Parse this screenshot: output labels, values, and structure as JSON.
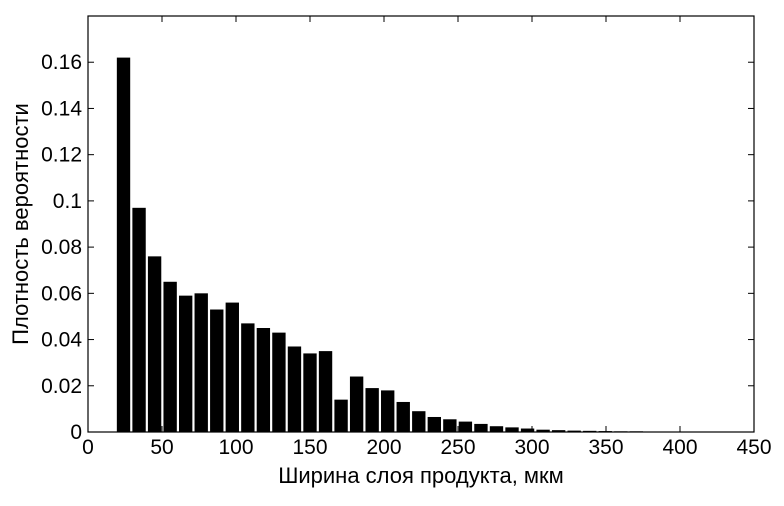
{
  "chart_data": {
    "type": "bar",
    "title": "",
    "xlabel": "Ширина слоя продукта, мкм",
    "ylabel": "Плотность вероятности",
    "xlim": [
      0,
      450
    ],
    "ylim": [
      0,
      0.18
    ],
    "xticks": [
      "0",
      "50",
      "100",
      "150",
      "200",
      "250",
      "300",
      "350",
      "400",
      "450"
    ],
    "yticks": [
      "0",
      "0.02",
      "0.04",
      "0.06",
      "0.08",
      "0.1",
      "0.12",
      "0.14",
      "0.16"
    ],
    "grid": false,
    "legend": "none",
    "bar_color": "#000000",
    "bin_width": 10.5,
    "x": [
      24,
      34.5,
      45,
      55.5,
      66,
      76.5,
      87,
      97.5,
      108,
      118.5,
      129,
      139.5,
      150,
      160.5,
      171,
      181.5,
      192,
      202.5,
      213,
      223.5,
      234,
      244.5,
      255,
      265.5,
      276,
      286.5,
      297,
      307.5,
      318,
      328.5,
      339,
      349.5,
      360,
      370.5,
      381,
      391.5,
      402,
      412.5,
      423
    ],
    "values": [
      0.162,
      0.097,
      0.076,
      0.065,
      0.059,
      0.06,
      0.053,
      0.056,
      0.047,
      0.045,
      0.043,
      0.037,
      0.034,
      0.035,
      0.014,
      0.024,
      0.019,
      0.018,
      0.013,
      0.009,
      0.0065,
      0.0055,
      0.0045,
      0.0035,
      0.0025,
      0.002,
      0.0015,
      0.001,
      0.0008,
      0.0006,
      0.0005,
      0.0004,
      0.0003,
      0.0003,
      0.0002,
      0.0002,
      0.0002,
      0.0001,
      0.0001
    ]
  }
}
